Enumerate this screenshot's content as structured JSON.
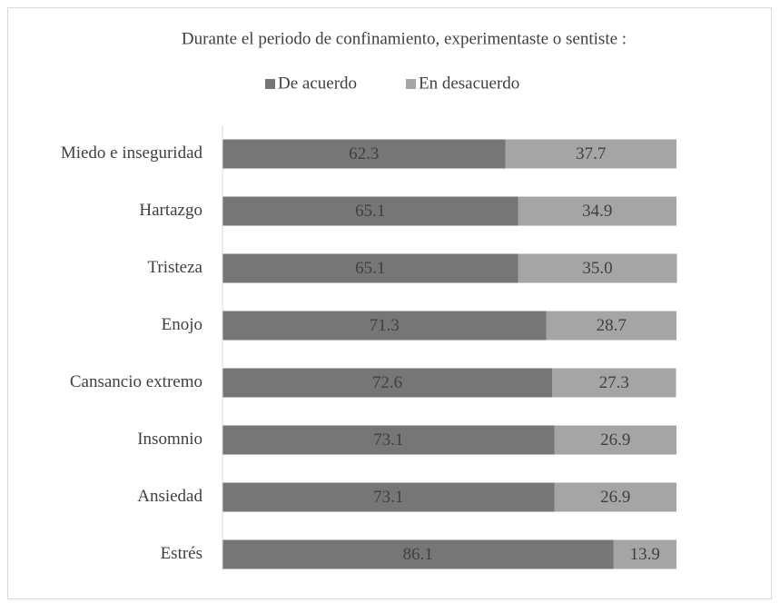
{
  "chart_data": {
    "type": "stacked-bar-horizontal",
    "title": "Durante el periodo de confinamiento, experimentaste o sentiste :",
    "categories": [
      "Miedo e inseguridad",
      "Hartazgo",
      "Tristeza",
      "Enojo",
      "Cansancio extremo",
      "Insomnio",
      "Ansiedad",
      "Estrés"
    ],
    "series": [
      {
        "name": "De acuerdo",
        "color": "#767676",
        "values": [
          62.3,
          65.1,
          65.1,
          71.3,
          72.6,
          73.1,
          73.1,
          86.1
        ]
      },
      {
        "name": "En desacuerdo",
        "color": "#a5a5a5",
        "values": [
          37.7,
          34.9,
          35.0,
          28.7,
          27.3,
          26.9,
          26.9,
          13.9
        ],
        "value_labels": [
          "37.7",
          "34.9",
          "35.0",
          "28.7",
          "27.3",
          "26.9",
          "26.9",
          "13.9"
        ]
      }
    ],
    "xlim": [
      0,
      100
    ],
    "legend": "top"
  }
}
